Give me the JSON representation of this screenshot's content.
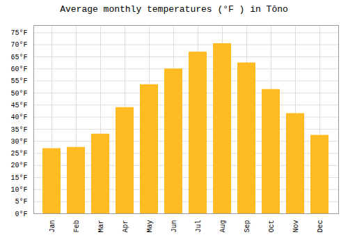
{
  "chart_data": {
    "type": "bar",
    "title": "Average monthly temperatures (°F ) in Tōno",
    "categories": [
      "Jan",
      "Feb",
      "Mar",
      "Apr",
      "May",
      "Jun",
      "Jul",
      "Aug",
      "Sep",
      "Oct",
      "Nov",
      "Dec"
    ],
    "values": [
      27,
      27.5,
      33,
      44,
      53.5,
      60,
      67,
      70.5,
      62.5,
      51.5,
      41.5,
      32.5
    ],
    "color": "#FFBB22",
    "ylim": [
      0,
      78
    ],
    "yticks": [
      {
        "value": 0,
        "label": "0°F"
      },
      {
        "value": 5,
        "label": "5°F"
      },
      {
        "value": 10,
        "label": "10°F"
      },
      {
        "value": 15,
        "label": "15°F"
      },
      {
        "value": 20,
        "label": "20°F"
      },
      {
        "value": 25,
        "label": "25°F"
      },
      {
        "value": 30,
        "label": "30°F"
      },
      {
        "value": 35,
        "label": "35°F"
      },
      {
        "value": 40,
        "label": "40°F"
      },
      {
        "value": 45,
        "label": "45°F"
      },
      {
        "value": 50,
        "label": "50°F"
      },
      {
        "value": 55,
        "label": "55°F"
      },
      {
        "value": 60,
        "label": "60°F"
      },
      {
        "value": 65,
        "label": "65°F"
      },
      {
        "value": 70,
        "label": "70°F"
      },
      {
        "value": 75,
        "label": "75°F"
      }
    ],
    "grid": true
  }
}
